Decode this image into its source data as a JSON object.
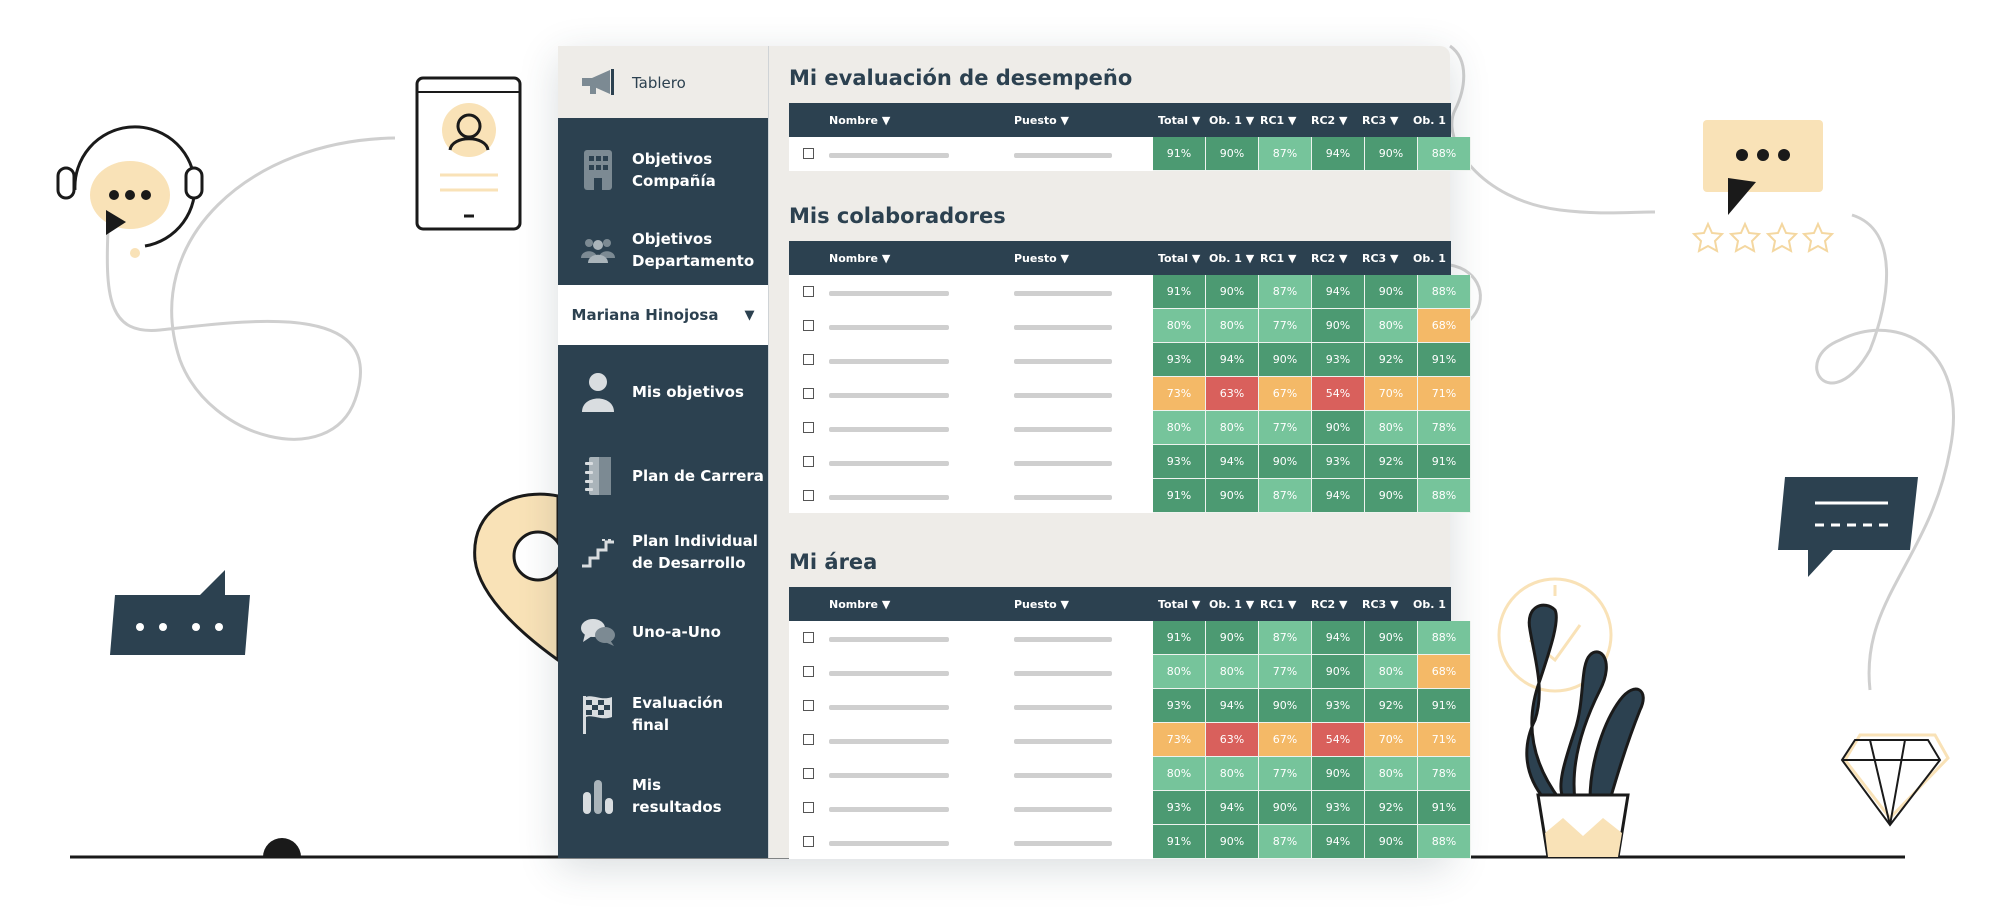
{
  "sidebar": {
    "items": [
      {
        "id": "tablero",
        "label": "Tablero",
        "icon": "megaphone-icon"
      },
      {
        "id": "objetivos-compania",
        "label": "Objetivos\nCompañía",
        "icon": "building-icon"
      },
      {
        "id": "objetivos-departamento",
        "label": "Objetivos\nDepartamento",
        "icon": "team-icon"
      },
      {
        "id": "mis-objetivos",
        "label": "Mis objetivos",
        "icon": "user-icon"
      },
      {
        "id": "plan-carrera",
        "label": "Plan de Carrera",
        "icon": "notebook-icon"
      },
      {
        "id": "plan-individual",
        "label": "Plan Individual\nde Desarrollo",
        "icon": "stairs-icon"
      },
      {
        "id": "uno-a-uno",
        "label": "Uno-a-Uno",
        "icon": "chat-bubbles-icon"
      },
      {
        "id": "evaluacion-final",
        "label": "Evaluación\nfinal",
        "icon": "checkered-flag-icon"
      },
      {
        "id": "mis-resultados",
        "label": "Mis\nresultados",
        "icon": "bar-chart-icon"
      }
    ],
    "user_selector": {
      "label": "Mariana Hinojosa",
      "arrow": "▼"
    }
  },
  "columns": [
    "Nombre ▼",
    "Puesto ▼",
    "Total ▼",
    "Ob. 1 ▼",
    "RC1 ▼",
    "RC2 ▼",
    "RC3 ▼",
    "Ob. 1"
  ],
  "sections": [
    {
      "title": "Mi evaluación de desempeño",
      "rows": [
        [
          "91%",
          "90%",
          "87%",
          "94%",
          "90%",
          "88%"
        ]
      ]
    },
    {
      "title": "Mis colaboradores",
      "rows": [
        [
          "91%",
          "90%",
          "87%",
          "94%",
          "90%",
          "88%"
        ],
        [
          "80%",
          "80%",
          "77%",
          "90%",
          "80%",
          "68%"
        ],
        [
          "93%",
          "94%",
          "90%",
          "93%",
          "92%",
          "91%"
        ],
        [
          "73%",
          "63%",
          "67%",
          "54%",
          "70%",
          "71%"
        ],
        [
          "80%",
          "80%",
          "77%",
          "90%",
          "80%",
          "78%"
        ],
        [
          "93%",
          "94%",
          "90%",
          "93%",
          "92%",
          "91%"
        ],
        [
          "91%",
          "90%",
          "87%",
          "94%",
          "90%",
          "88%"
        ]
      ]
    },
    {
      "title": "Mi área",
      "rows": [
        [
          "91%",
          "90%",
          "87%",
          "94%",
          "90%",
          "88%"
        ],
        [
          "80%",
          "80%",
          "77%",
          "90%",
          "80%",
          "68%"
        ],
        [
          "93%",
          "94%",
          "90%",
          "93%",
          "92%",
          "91%"
        ],
        [
          "73%",
          "63%",
          "67%",
          "54%",
          "70%",
          "71%"
        ],
        [
          "80%",
          "80%",
          "77%",
          "90%",
          "80%",
          "78%"
        ],
        [
          "93%",
          "94%",
          "90%",
          "93%",
          "92%",
          "91%"
        ],
        [
          "91%",
          "90%",
          "87%",
          "94%",
          "90%",
          "88%"
        ]
      ]
    }
  ],
  "colors": {
    "navy": "#2c4150",
    "dark_green": "#4c9a72",
    "light_green": "#76c49b",
    "orange": "#f4b967",
    "red": "#d9605c",
    "cream": "#f9e2b7"
  }
}
